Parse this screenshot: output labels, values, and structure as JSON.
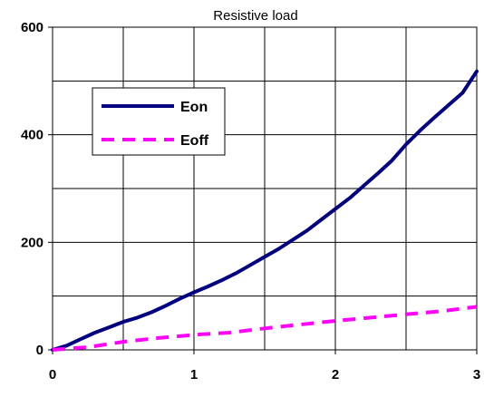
{
  "chart_data": {
    "type": "line",
    "title": "Resistive load",
    "xlabel": "",
    "ylabel": "",
    "xlim": [
      0,
      3
    ],
    "ylim": [
      0,
      600
    ],
    "x_ticks": [
      0,
      1,
      2,
      3
    ],
    "y_ticks": [
      0,
      200,
      400,
      600
    ],
    "x_minor_grid": [
      0.5,
      1.5,
      2.5
    ],
    "y_minor_grid": [
      100,
      300,
      500
    ],
    "grid": true,
    "legend_position": "upper-left",
    "series": [
      {
        "name": "Eon",
        "color": "#000080",
        "style": "solid",
        "x": [
          0,
          0.1,
          0.2,
          0.3,
          0.4,
          0.5,
          0.6,
          0.7,
          0.8,
          0.9,
          1.0,
          1.1,
          1.2,
          1.3,
          1.4,
          1.5,
          1.6,
          1.7,
          1.8,
          1.9,
          2.0,
          2.1,
          2.2,
          2.3,
          2.4,
          2.5,
          2.6,
          2.7,
          2.8,
          2.9,
          3.0
        ],
        "y": [
          0,
          8,
          20,
          32,
          42,
          52,
          60,
          70,
          82,
          95,
          107,
          118,
          130,
          143,
          158,
          173,
          188,
          205,
          222,
          242,
          262,
          282,
          305,
          328,
          352,
          382,
          408,
          432,
          455,
          478,
          518
        ]
      },
      {
        "name": "Eoff",
        "color": "#ff00ff",
        "style": "dashed",
        "x": [
          0,
          0.25,
          0.5,
          0.75,
          1.0,
          1.25,
          1.5,
          1.75,
          2.0,
          2.25,
          2.5,
          2.75,
          3.0
        ],
        "y": [
          0,
          5,
          15,
          22,
          28,
          32,
          40,
          47,
          54,
          60,
          66,
          72,
          80
        ]
      }
    ]
  }
}
